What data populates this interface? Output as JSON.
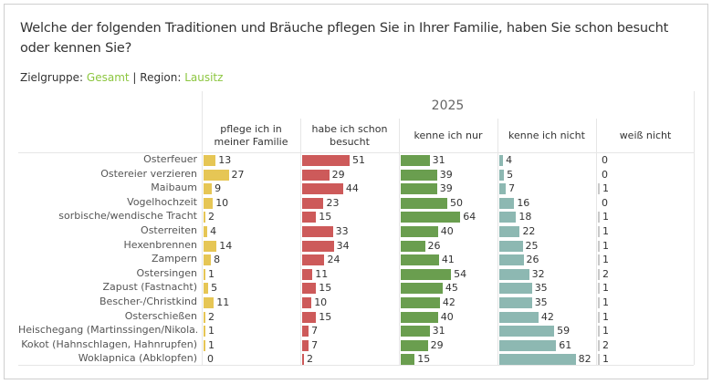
{
  "header": {
    "title": "Welche der folgenden Traditionen und Bräuche pflegen Sie in Ihrer Familie, haben Sie schon besucht oder kennen Sie?",
    "filters": {
      "zielgruppe_label": "Zielgruppe: ",
      "zielgruppe_value": "Gesamt",
      "separator": " | ",
      "region_label": "Region: ",
      "region_value": "Lausitz"
    },
    "highlight_color": "#8cc63f"
  },
  "chart_data": {
    "type": "bar",
    "orientation": "horizontal",
    "layout": "small-multiples",
    "title": "2025",
    "xlabel": "",
    "ylabel": "",
    "grid": false,
    "categories": [
      "Osterfeuer",
      "Ostereier verzieren",
      "Maibaum",
      "Vogelhochzeit",
      "sorbische/wendische Tracht",
      "Osterreiten",
      "Hexenbrennen",
      "Zampern",
      "Ostersingen",
      "Zapust (Fastnacht)",
      "Bescher-/Christkind",
      "Osterschießen",
      "Heischegang (Martinssingen/Nikola..",
      "Kokot (Hahnschlagen, Hahnrupfen)",
      "Woklapnica (Abklopfen)"
    ],
    "series": [
      {
        "name": "pflege ich in meiner Familie",
        "color": "#e6c655",
        "values": [
          13,
          27,
          9,
          10,
          2,
          4,
          14,
          8,
          1,
          5,
          11,
          2,
          1,
          1,
          0
        ]
      },
      {
        "name": "habe ich schon besucht",
        "color": "#cd5a5a",
        "values": [
          51,
          29,
          44,
          23,
          15,
          33,
          34,
          24,
          11,
          15,
          10,
          15,
          7,
          7,
          2
        ]
      },
      {
        "name": "kenne ich nur",
        "color": "#6a9e4f",
        "values": [
          31,
          39,
          39,
          50,
          64,
          40,
          26,
          41,
          54,
          45,
          42,
          40,
          31,
          29,
          15
        ]
      },
      {
        "name": "kenne ich nicht",
        "color": "#8db8b2",
        "values": [
          4,
          5,
          7,
          16,
          18,
          22,
          25,
          26,
          32,
          35,
          35,
          42,
          59,
          61,
          82
        ]
      },
      {
        "name": "weiß nicht",
        "color": "#c9c9c9",
        "values": [
          0,
          0,
          1,
          0,
          1,
          1,
          1,
          1,
          2,
          1,
          1,
          1,
          1,
          2,
          1
        ]
      }
    ],
    "xlim": [
      0,
      100
    ],
    "unit": "%"
  }
}
